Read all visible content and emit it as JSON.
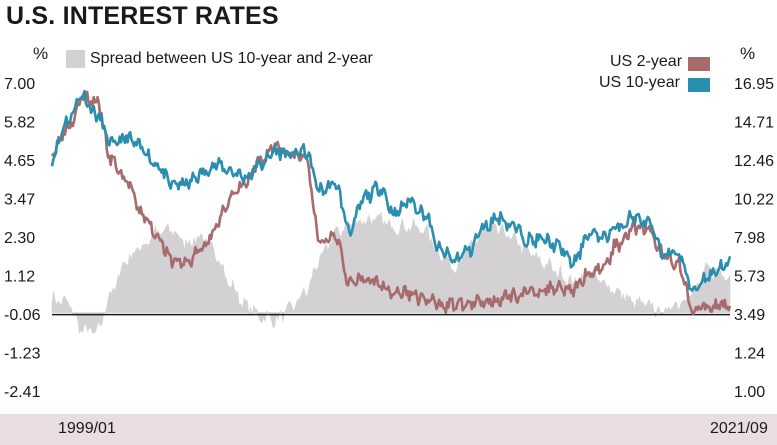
{
  "title": "U.S. INTEREST RATES",
  "left_unit": "%",
  "right_unit": "%",
  "legend": {
    "spread": "Spread between US 10-year and 2-year",
    "us2": "US 2-year",
    "us10": "US 10-year"
  },
  "colors": {
    "spread": "#d3d1d3",
    "us2": "#a86b6d",
    "us10": "#2a8fae",
    "zero_line": "#1a1a1a",
    "footer": "#eadde0"
  },
  "x_labels": {
    "start": "1999/01",
    "end": "2021/09"
  },
  "chart_data": {
    "type": "line",
    "title": "U.S. INTEREST RATES",
    "x_range": [
      "1999/01",
      "2021/09"
    ],
    "left_axis": {
      "unit": "%",
      "ticks": [
        "7.00",
        "5.82",
        "4.65",
        "3.47",
        "2.30",
        "1.12",
        "-0.06",
        "-1.23",
        "-2.41"
      ],
      "ylim": [
        -2.41,
        7.0
      ]
    },
    "right_axis": {
      "unit": "%",
      "ticks": [
        "16.95",
        "14.71",
        "12.46",
        "10.22",
        "7.98",
        "5.73",
        "3.49",
        "1.24",
        "1.00"
      ]
    },
    "legend_placement": "top",
    "series": [
      {
        "name": "Spread between US 10-year and 2-year",
        "kind": "area",
        "axis": "left",
        "x": [
          1999.0,
          1999.5,
          2000.0,
          2000.5,
          2001.0,
          2001.5,
          2002.0,
          2002.5,
          2003.0,
          2003.5,
          2004.0,
          2004.5,
          2005.0,
          2005.5,
          2006.0,
          2006.5,
          2007.0,
          2007.5,
          2008.0,
          2008.5,
          2009.0,
          2009.5,
          2010.0,
          2010.5,
          2011.0,
          2011.5,
          2012.0,
          2012.5,
          2013.0,
          2013.5,
          2014.0,
          2014.5,
          2015.0,
          2015.5,
          2016.0,
          2016.5,
          2017.0,
          2017.5,
          2018.0,
          2018.5,
          2019.0,
          2019.5,
          2020.0,
          2020.5,
          2021.0,
          2021.5,
          2021.75
        ],
        "values": [
          0.4,
          0.3,
          -0.5,
          -0.6,
          0.6,
          1.6,
          2.0,
          2.4,
          2.5,
          2.1,
          2.3,
          1.8,
          0.8,
          0.2,
          -0.1,
          -0.2,
          0.1,
          0.6,
          1.6,
          2.4,
          2.7,
          2.8,
          2.8,
          2.6,
          2.6,
          2.5,
          1.8,
          1.4,
          1.9,
          2.5,
          2.5,
          2.2,
          1.8,
          1.5,
          1.2,
          0.9,
          1.2,
          0.9,
          0.6,
          0.3,
          0.2,
          0.0,
          0.3,
          0.6,
          1.3,
          1.2,
          1.1
        ]
      },
      {
        "name": "US 2-year",
        "kind": "line",
        "axis": "left",
        "x": [
          1999.0,
          1999.5,
          2000.0,
          2000.5,
          2001.0,
          2001.5,
          2002.0,
          2002.5,
          2003.0,
          2003.5,
          2004.0,
          2004.5,
          2005.0,
          2005.5,
          2006.0,
          2006.5,
          2007.0,
          2007.5,
          2008.0,
          2008.5,
          2009.0,
          2009.5,
          2010.0,
          2010.5,
          2011.0,
          2011.5,
          2012.0,
          2012.5,
          2013.0,
          2013.5,
          2014.0,
          2014.5,
          2015.0,
          2015.5,
          2016.0,
          2016.5,
          2017.0,
          2017.5,
          2018.0,
          2018.5,
          2019.0,
          2019.5,
          2020.0,
          2020.5,
          2021.0,
          2021.5,
          2021.75
        ],
        "values": [
          4.9,
          5.6,
          6.5,
          6.4,
          4.6,
          4.0,
          3.0,
          2.4,
          1.6,
          1.5,
          1.9,
          2.6,
          3.5,
          3.9,
          4.6,
          5.1,
          4.8,
          4.7,
          2.1,
          2.4,
          0.9,
          1.0,
          0.9,
          0.6,
          0.6,
          0.4,
          0.25,
          0.25,
          0.25,
          0.35,
          0.4,
          0.5,
          0.6,
          0.7,
          0.8,
          0.7,
          1.2,
          1.4,
          2.1,
          2.6,
          2.5,
          1.8,
          1.5,
          0.15,
          0.12,
          0.22,
          0.28
        ]
      },
      {
        "name": "US 10-year",
        "kind": "line",
        "axis": "left",
        "x": [
          1999.0,
          1999.5,
          2000.0,
          2000.5,
          2001.0,
          2001.5,
          2002.0,
          2002.5,
          2003.0,
          2003.5,
          2004.0,
          2004.5,
          2005.0,
          2005.5,
          2006.0,
          2006.5,
          2007.0,
          2007.5,
          2008.0,
          2008.5,
          2009.0,
          2009.5,
          2010.0,
          2010.5,
          2011.0,
          2011.5,
          2012.0,
          2012.5,
          2013.0,
          2013.5,
          2014.0,
          2014.5,
          2015.0,
          2015.5,
          2016.0,
          2016.5,
          2017.0,
          2017.5,
          2018.0,
          2018.5,
          2019.0,
          2019.5,
          2020.0,
          2020.5,
          2021.0,
          2021.5,
          2021.75
        ],
        "values": [
          4.7,
          5.8,
          6.6,
          6.0,
          5.1,
          5.3,
          5.0,
          4.5,
          3.9,
          3.9,
          4.2,
          4.5,
          4.3,
          4.1,
          4.5,
          4.9,
          4.8,
          4.9,
          3.7,
          3.9,
          2.5,
          3.5,
          3.8,
          3.0,
          3.4,
          3.0,
          1.9,
          1.6,
          1.9,
          2.6,
          2.9,
          2.6,
          2.2,
          2.2,
          2.0,
          1.5,
          2.4,
          2.3,
          2.6,
          2.9,
          2.7,
          1.8,
          1.8,
          0.7,
          1.1,
          1.4,
          1.5
        ]
      }
    ]
  }
}
